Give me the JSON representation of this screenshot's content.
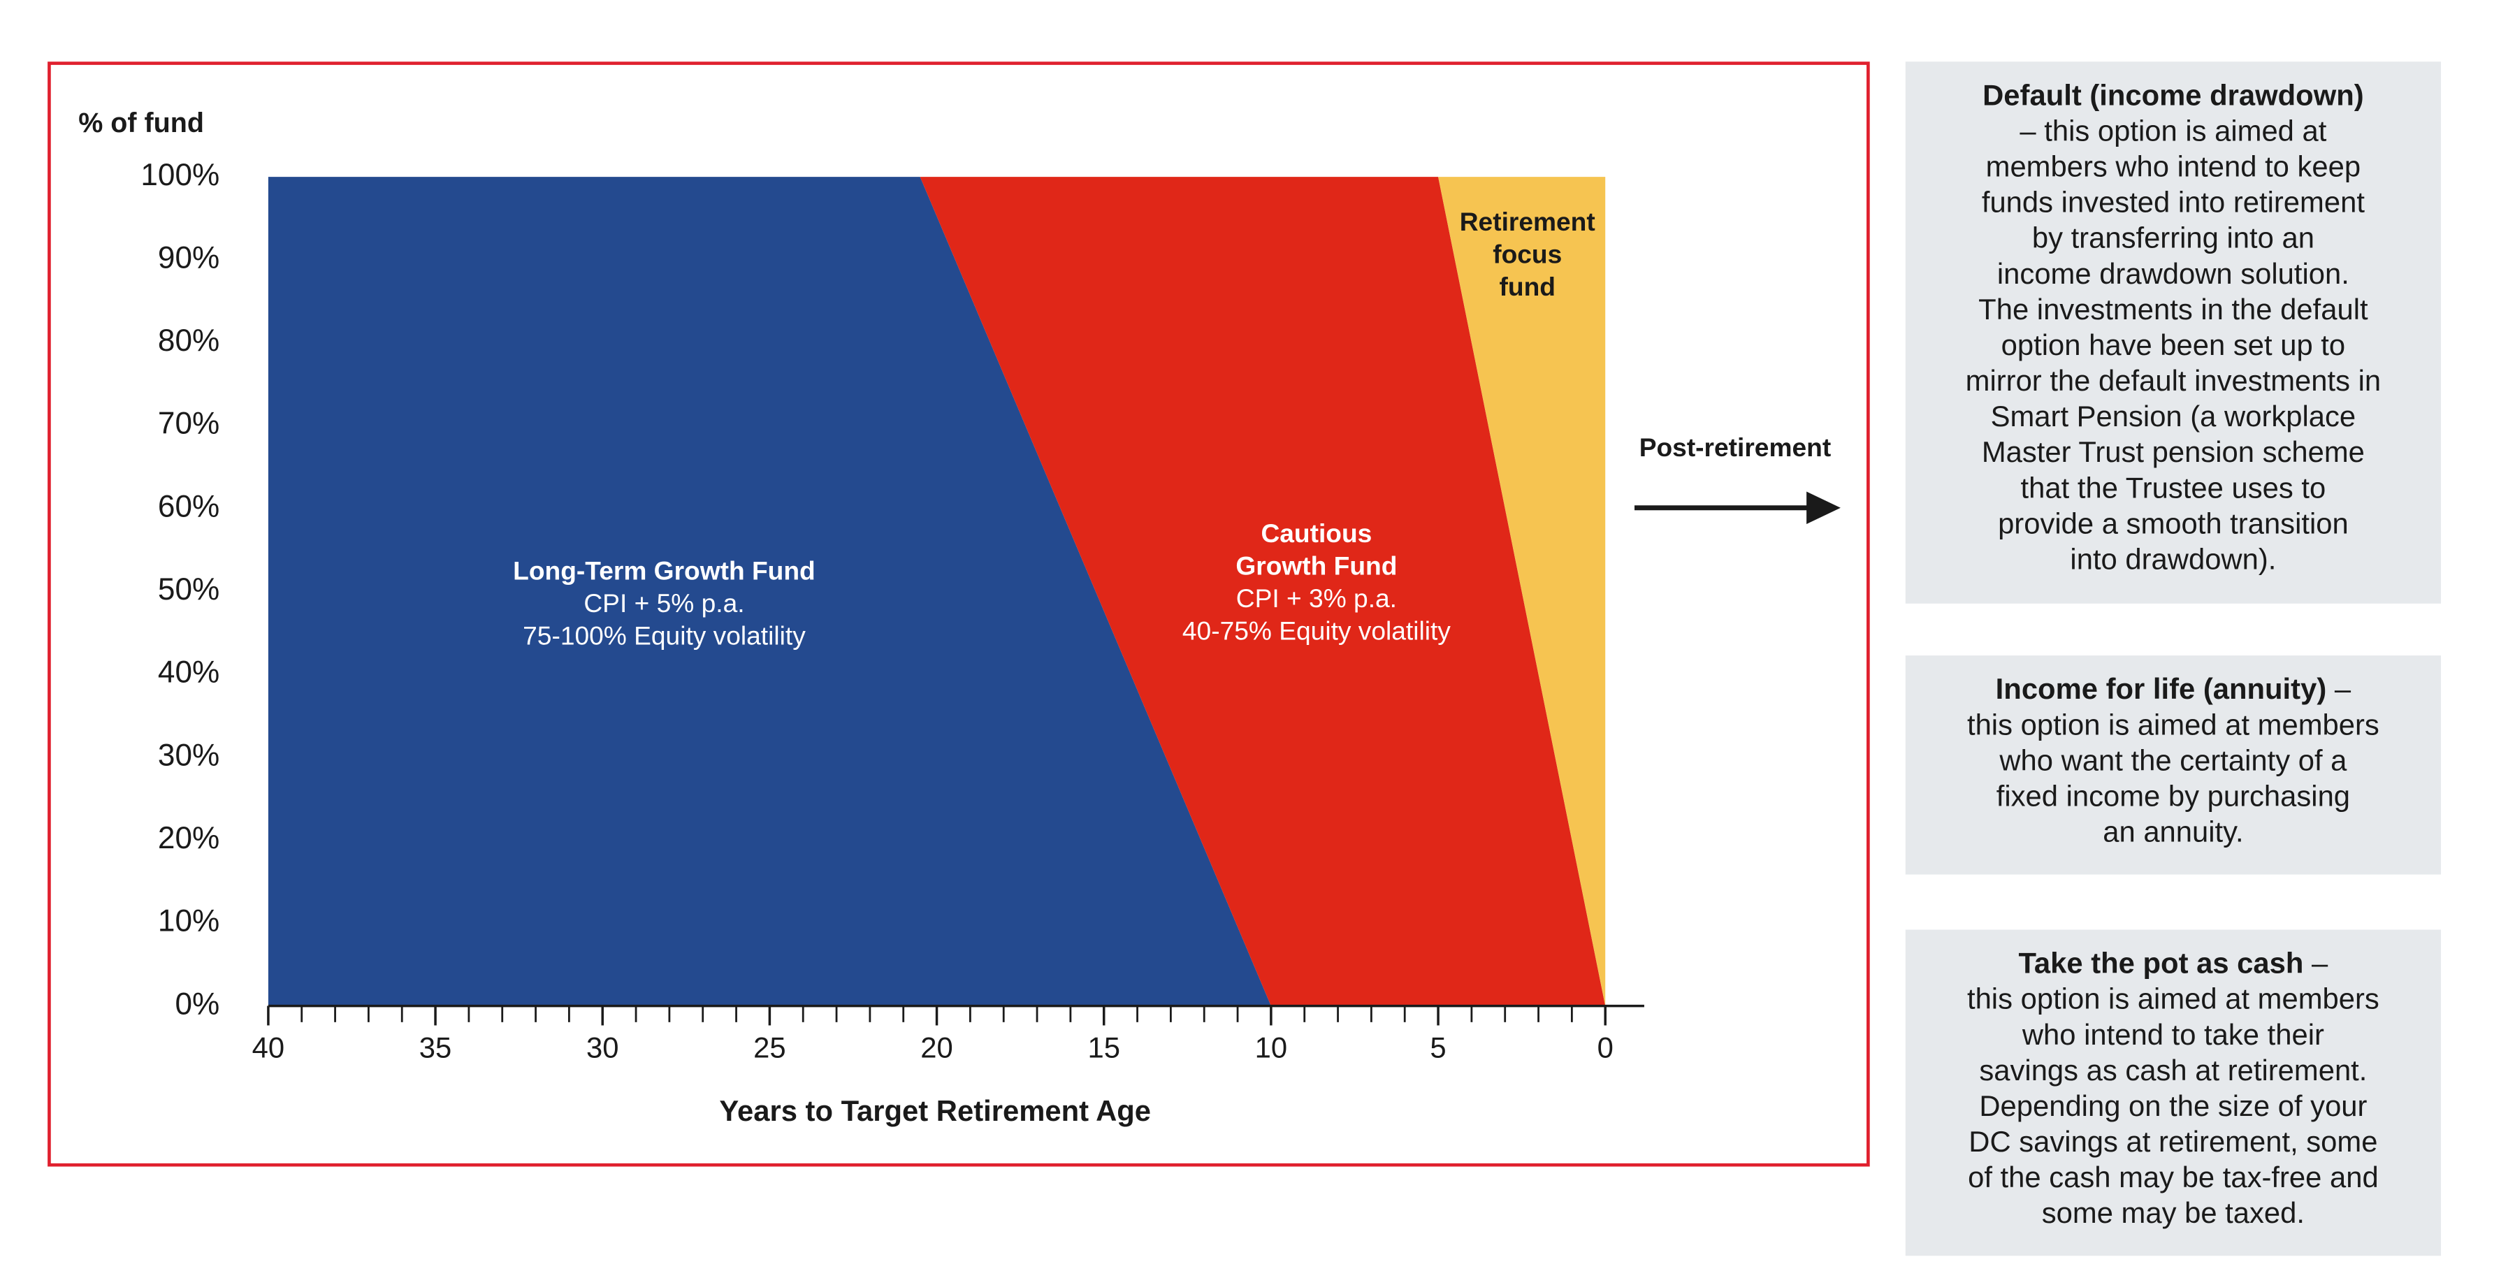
{
  "chart_data": {
    "type": "stacked_area",
    "y_axis_title": "% of fund",
    "x_axis_title": "Years to Target Retirement Age",
    "x": [
      40,
      20.5,
      10,
      5,
      0
    ],
    "series": [
      {
        "color": "#244a8f",
        "values": [
          100,
          100,
          0,
          0,
          0
        ],
        "label": {
          "title": [
            "Long-Term Growth Fund"
          ],
          "detail": [
            "CPI + 5% p.a.",
            "75-100% Equity volatility"
          ]
        }
      },
      {
        "color": "#e02718",
        "values": [
          0,
          0,
          100,
          100,
          0
        ],
        "label": {
          "title": [
            "Cautious",
            "Growth Fund"
          ],
          "detail": [
            "CPI + 3% p.a.",
            "40-75% Equity volatility"
          ]
        }
      },
      {
        "color": "#f6c451",
        "values": [
          0,
          0,
          0,
          0,
          100
        ],
        "label": {
          "title": [
            "Retirement",
            "focus",
            "fund"
          ]
        }
      }
    ],
    "xlim": [
      40,
      0
    ],
    "xticks": [
      40,
      35,
      30,
      25,
      20,
      15,
      10,
      5,
      0
    ],
    "ylim": [
      0,
      100
    ],
    "yticks": [
      {
        "value": 0,
        "label": "0%"
      },
      {
        "value": 10,
        "label": "10%"
      },
      {
        "value": 20,
        "label": "20%"
      },
      {
        "value": 30,
        "label": "30%"
      },
      {
        "value": 40,
        "label": "40%"
      },
      {
        "value": 50,
        "label": "50%"
      },
      {
        "value": 60,
        "label": "60%"
      },
      {
        "value": 70,
        "label": "70%"
      },
      {
        "value": 80,
        "label": "80%"
      },
      {
        "value": 90,
        "label": "90%"
      },
      {
        "value": 100,
        "label": "100%"
      }
    ],
    "arrow_label": "Post-retirement"
  },
  "side_notes": [
    {
      "title": "Default (income drawdown)",
      "lines": [
        "– this option is aimed at",
        "members who intend to keep",
        "funds invested into retirement",
        "by transferring into an",
        "income drawdown solution.",
        "The investments in the default",
        "option have been set up to",
        "mirror the default investments in",
        "Smart Pension (a workplace",
        "Master Trust pension scheme",
        "that the Trustee uses to",
        "provide a smooth transition",
        "into drawdown)."
      ]
    },
    {
      "title": "Income for life (annuity)",
      "dash": " –",
      "lines": [
        "this option is aimed at members",
        "who want the certainty of a",
        "fixed income by purchasing",
        "an annuity."
      ]
    },
    {
      "title": "Take the pot as cash",
      "dash": " –",
      "lines": [
        "this option is aimed at members",
        "who intend to take their",
        "savings as cash at retirement.",
        "Depending on the size of your",
        "DC savings at retirement, some",
        "of the cash may be tax-free and",
        "some may be taxed."
      ]
    }
  ]
}
